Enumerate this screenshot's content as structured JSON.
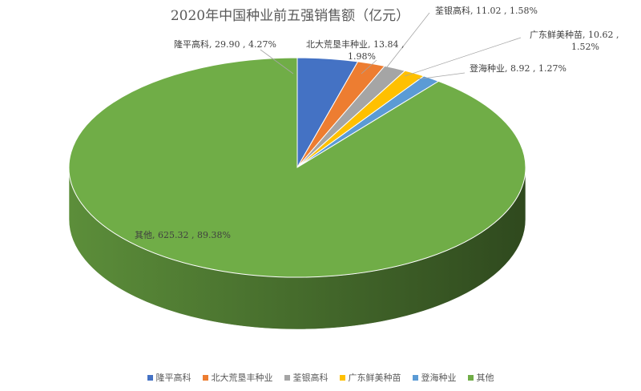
{
  "chart_data": {
    "type": "pie",
    "title": "2020年中国种业前五强销售额（亿元）",
    "series": [
      {
        "name": "隆平高科",
        "value": 29.9,
        "percent": "4.27%",
        "color": "#4472C4",
        "label_lines": [
          "隆平高科, 29.90 , 4.27%"
        ]
      },
      {
        "name": "北大荒垦丰种业",
        "value": 13.84,
        "percent": "1.98%",
        "color": "#ED7D31",
        "label_lines": [
          "北大荒垦丰种业, 13.84 ,",
          "1.98%"
        ]
      },
      {
        "name": "荃银高科",
        "value": 11.02,
        "percent": "1.58%",
        "color": "#A5A5A5",
        "label_lines": [
          "荃银高科, 11.02 , 1.58%"
        ]
      },
      {
        "name": "广东鲜美种苗",
        "value": 10.62,
        "percent": "1.52%",
        "color": "#FFC000",
        "label_lines": [
          "广东鲜美种苗, 10.62 ,",
          "1.52%"
        ]
      },
      {
        "name": "登海种业",
        "value": 8.92,
        "percent": "1.27%",
        "color": "#5B9BD5",
        "label_lines": [
          "登海种业, 8.92 , 1.27%"
        ]
      },
      {
        "name": "其他",
        "value": 625.32,
        "percent": "89.38%",
        "color": "#70AD47",
        "label_lines": [
          "其他, 625.32 , 89.38%"
        ]
      }
    ],
    "legend_position": "bottom",
    "style": "3d"
  }
}
